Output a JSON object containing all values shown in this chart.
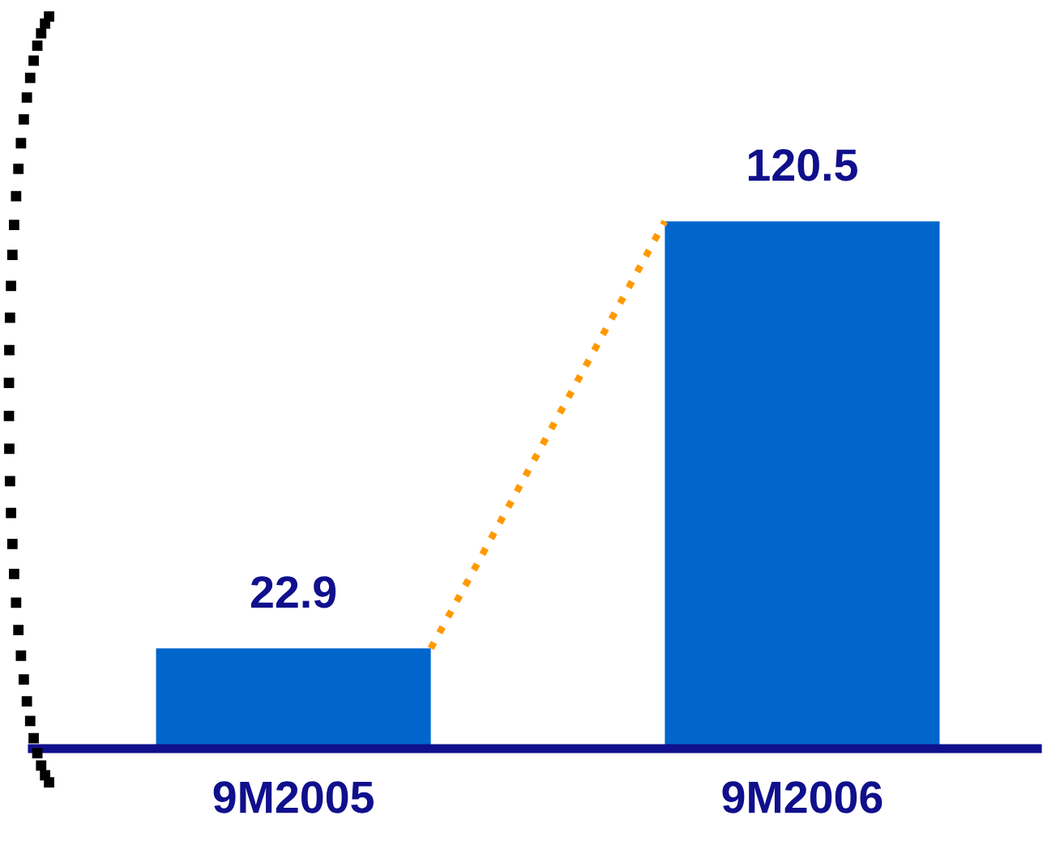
{
  "chart_data": {
    "type": "bar",
    "categories": [
      "9M2005",
      "9M2006"
    ],
    "series": [
      {
        "color": "#0066cc",
        "values": [
          22.9,
          120.5
        ]
      }
    ],
    "data_labels": true,
    "grid": false,
    "legend": false
  }
}
